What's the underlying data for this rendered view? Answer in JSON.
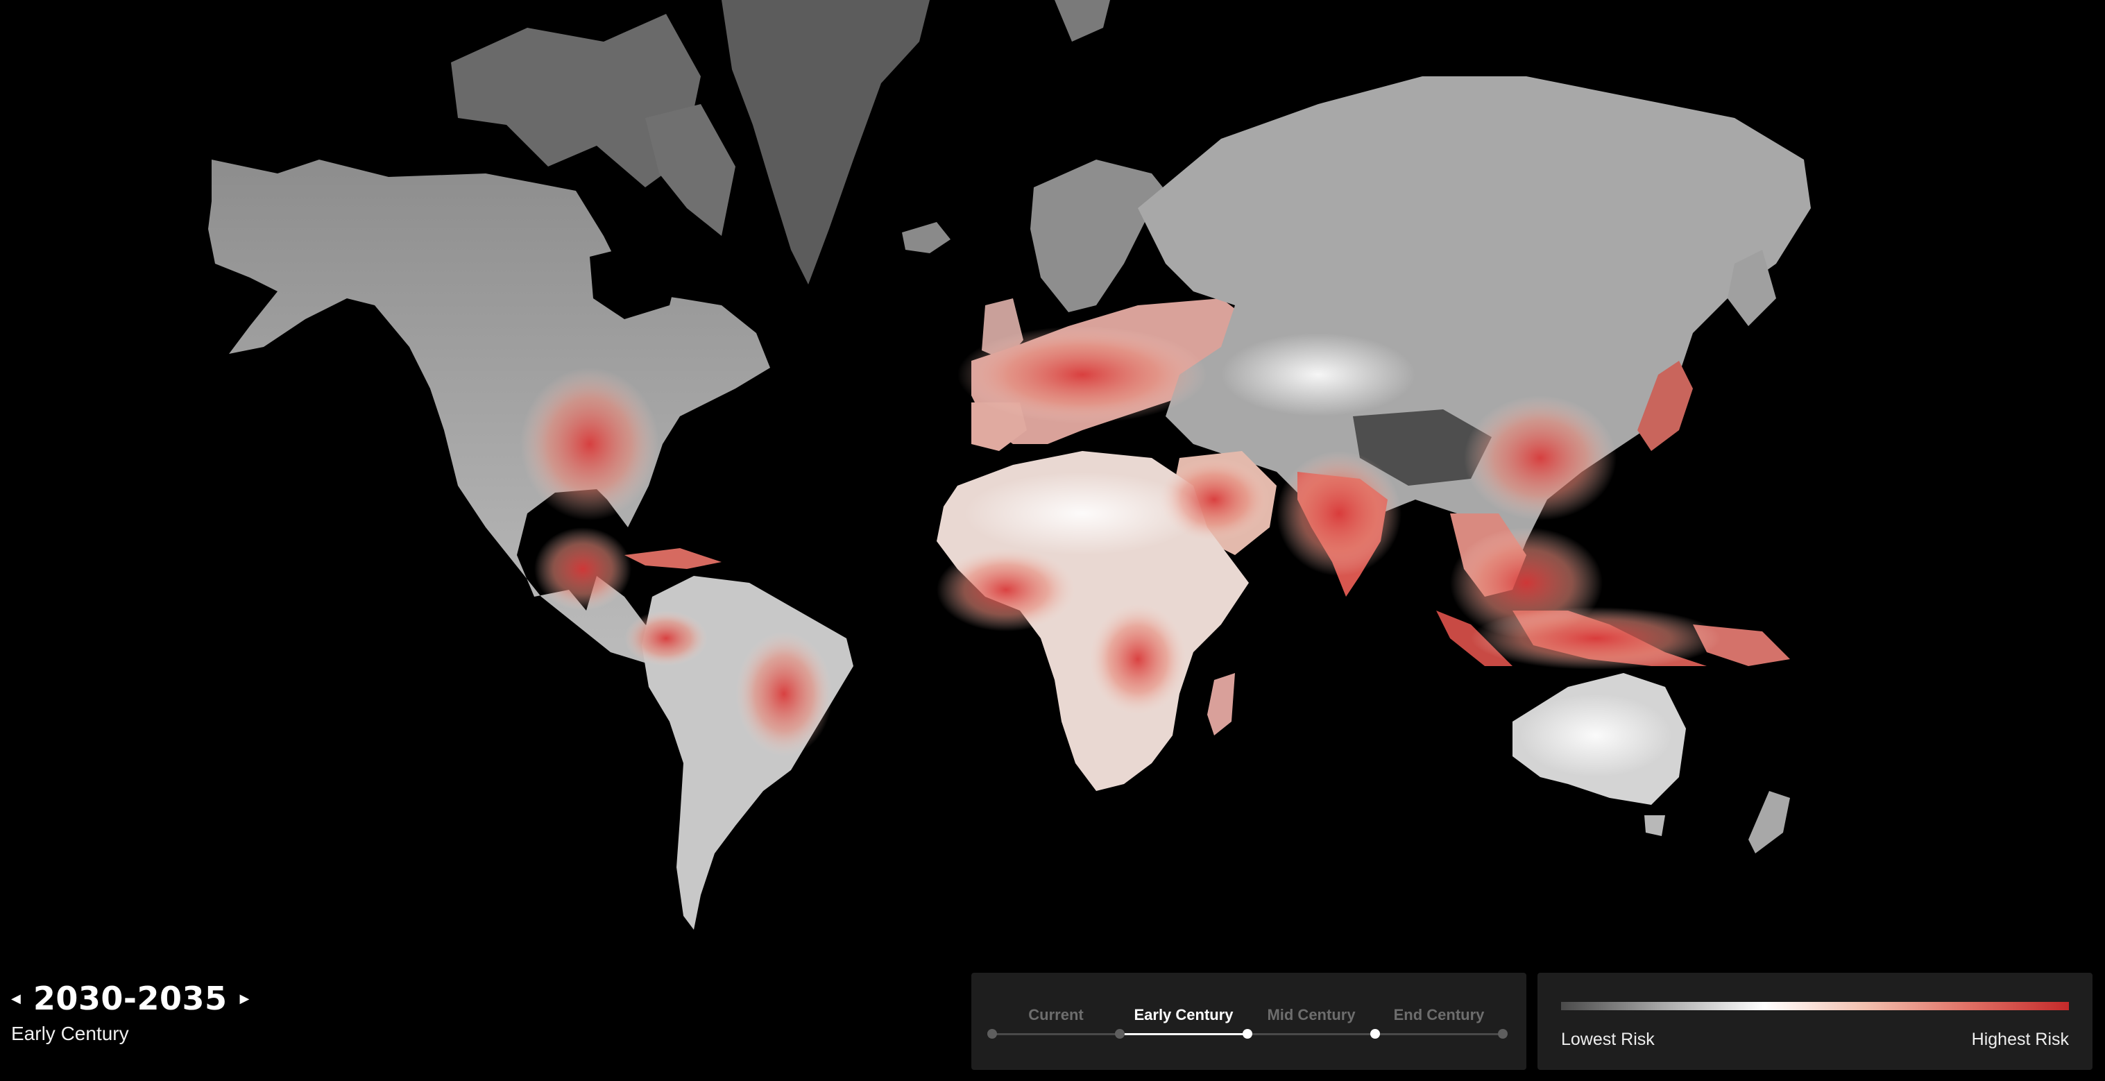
{
  "period": {
    "prev_arrow": "◀",
    "years": "2030-2035",
    "next_arrow": "▶",
    "label": "Early Century"
  },
  "timeline": {
    "stages": [
      "Current",
      "Early Century",
      "Mid Century",
      "End Century"
    ],
    "active_index": 1
  },
  "legend": {
    "low_label": "Lowest Risk",
    "high_label": "Highest Risk",
    "colors": [
      "#4a4a4a",
      "#a8a8a8",
      "#ffffff",
      "#f2bfae",
      "#e07166",
      "#c42a2a"
    ]
  },
  "map": {
    "background": "#000000",
    "land_color": "#8a8a8a",
    "ice_color": "#5c5c5c"
  }
}
